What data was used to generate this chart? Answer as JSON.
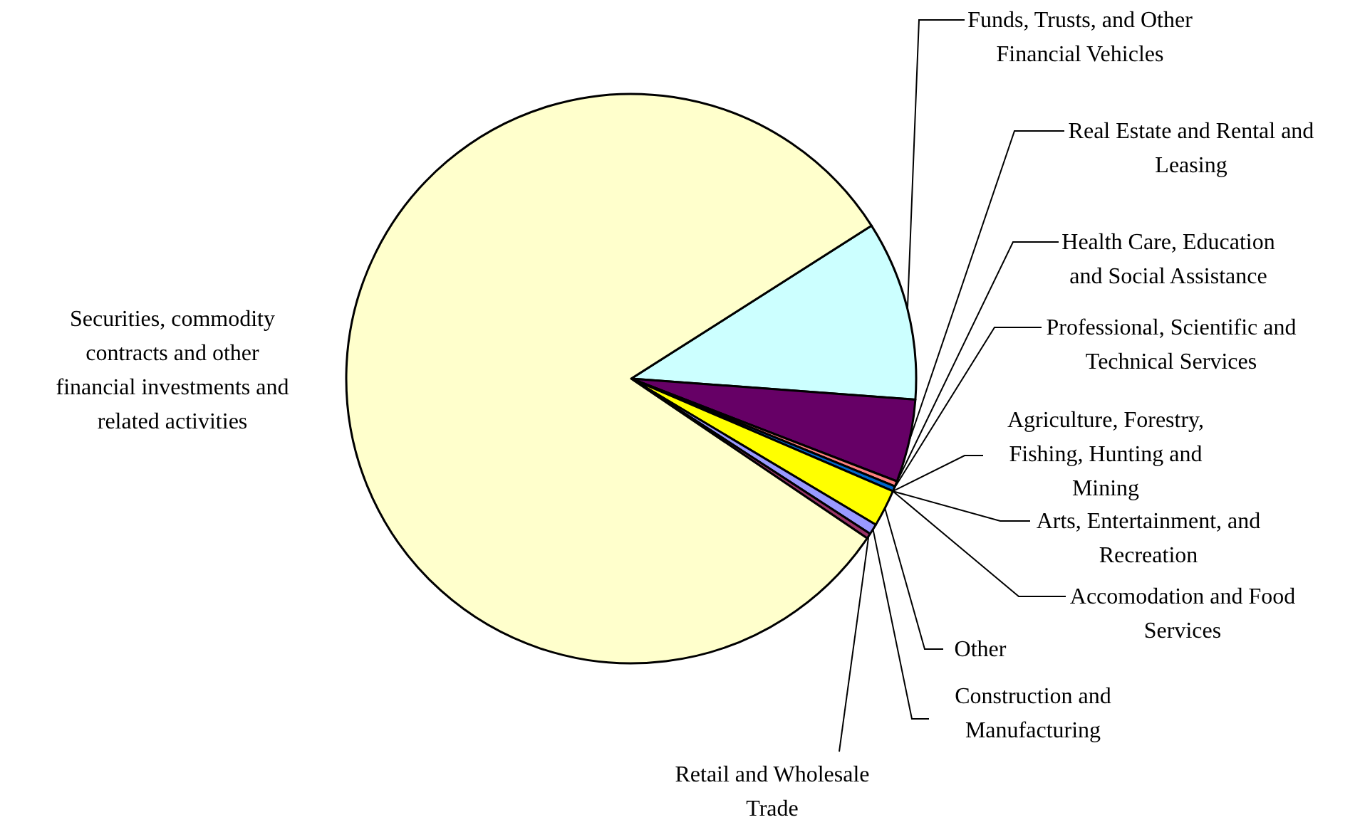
{
  "chart_data": {
    "type": "pie",
    "categories": [
      "Funds, Trusts, and Other Financial Vehicles",
      "Real Estate and Rental and Leasing",
      "Health Care, Education and Social Assistance",
      "Professional, Scientific and Technical Services",
      "Agriculture, Forestry, Fishing, Hunting and Mining",
      "Arts, Entertainment, and Recreation",
      "Accomodation and Food Services",
      "Other",
      "Construction and Manufacturing",
      "Retail and Wholesale Trade",
      "Securities, commodity contracts and other financial investments and related activities"
    ],
    "values": [
      10.2,
      4.7,
      0.3,
      0.3,
      null,
      null,
      null,
      2.1,
      0.6,
      0.3,
      81.5
    ],
    "colors": [
      "#ccffff",
      "#660066",
      "#ff8080",
      "#0066cc",
      null,
      null,
      null,
      "#ffff00",
      "#9999ff",
      "#993366",
      "#ffffcc"
    ]
  }
}
